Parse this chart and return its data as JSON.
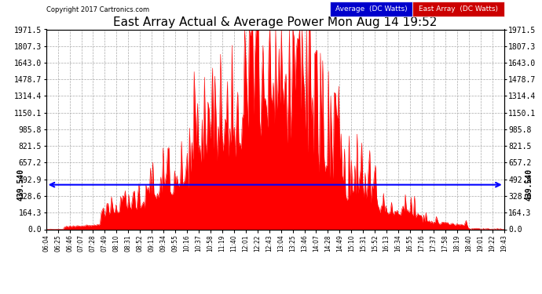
{
  "title": "East Array Actual & Average Power Mon Aug 14 19:52",
  "copyright": "Copyright 2017 Cartronics.com",
  "legend_avg": "Average  (DC Watts)",
  "legend_east": "East Array  (DC Watts)",
  "average_value": 439.54,
  "y_max": 1971.5,
  "y_min": 0.0,
  "y_ticks": [
    0.0,
    164.3,
    328.6,
    492.9,
    657.2,
    821.5,
    985.8,
    1150.1,
    1314.4,
    1478.7,
    1643.0,
    1807.3,
    1971.5
  ],
  "bg_color": "#ffffff",
  "grid_color": "#aaaaaa",
  "fill_color": "#ff0000",
  "line_color": "#ff0000",
  "avg_line_color": "#0000ff",
  "x_label_fontsize": 5.5,
  "y_label_fontsize": 7,
  "title_fontsize": 11,
  "x_tick_labels": [
    "06:04",
    "06:25",
    "06:46",
    "07:07",
    "07:28",
    "07:49",
    "08:10",
    "08:31",
    "08:52",
    "09:13",
    "09:34",
    "09:55",
    "10:16",
    "10:37",
    "10:58",
    "11:19",
    "11:40",
    "12:01",
    "12:22",
    "12:43",
    "13:04",
    "13:25",
    "13:46",
    "14:07",
    "14:28",
    "14:49",
    "15:10",
    "15:31",
    "15:52",
    "16:13",
    "16:34",
    "16:55",
    "17:16",
    "17:37",
    "17:58",
    "18:19",
    "18:40",
    "19:01",
    "19:22",
    "19:43"
  ],
  "num_points": 400,
  "seed": 7
}
